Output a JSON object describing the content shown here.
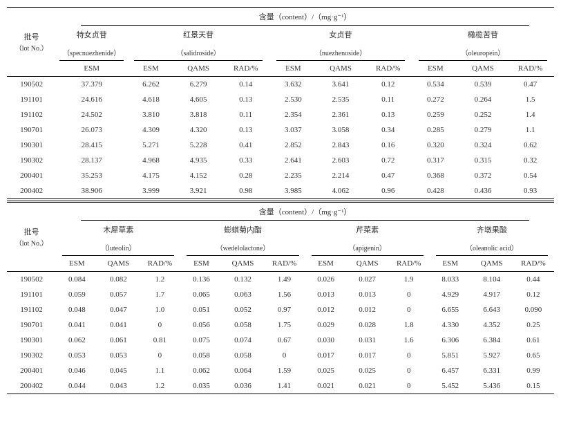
{
  "header_content": "含量（content）/（mg·g⁻¹）",
  "lot_label_cn": "批号",
  "lot_label_en": "（lot No.）",
  "compounds_top": [
    {
      "cn": "特女贞苷",
      "en": "（specnuezhenide）",
      "cols": [
        "ESM"
      ]
    },
    {
      "cn": "红景天苷",
      "en": "（salidroside）",
      "cols": [
        "ESM",
        "QAMS",
        "RAD/%"
      ]
    },
    {
      "cn": "女贞苷",
      "en": "（nuezhenoside）",
      "cols": [
        "ESM",
        "QAMS",
        "RAD/%"
      ]
    },
    {
      "cn": "橄榄苦苷",
      "en": "（oleuropein）",
      "cols": [
        "ESM",
        "QAMS",
        "RAD/%"
      ]
    }
  ],
  "compounds_bot": [
    {
      "cn": "木犀草素",
      "en": "（luteolin）",
      "cols": [
        "ESM",
        "QAMS",
        "RAD/%"
      ]
    },
    {
      "cn": "蟛蜞菊内酯",
      "en": "（wedelolactone）",
      "cols": [
        "ESM",
        "QAMS",
        "RAD/%"
      ]
    },
    {
      "cn": "芹菜素",
      "en": "（apigenin）",
      "cols": [
        "ESM",
        "QAMS",
        "RAD/%"
      ]
    },
    {
      "cn": "齐墩果酸",
      "en": "（oleanolic acid）",
      "cols": [
        "ESM",
        "QAMS",
        "RAD/%"
      ]
    }
  ],
  "lots": [
    "190502",
    "191101",
    "191102",
    "190701",
    "190301",
    "190302",
    "200401",
    "200402"
  ],
  "top_data": [
    [
      "37.379",
      "6.262",
      "6.279",
      "0.14",
      "3.632",
      "3.641",
      "0.12",
      "0.534",
      "0.539",
      "0.47"
    ],
    [
      "24.616",
      "4.618",
      "4.605",
      "0.13",
      "2.530",
      "2.535",
      "0.11",
      "0.272",
      "0.264",
      "1.5"
    ],
    [
      "24.502",
      "3.810",
      "3.818",
      "0.11",
      "2.354",
      "2.361",
      "0.13",
      "0.259",
      "0.252",
      "1.4"
    ],
    [
      "26.073",
      "4.309",
      "4.320",
      "0.13",
      "3.037",
      "3.058",
      "0.34",
      "0.285",
      "0.279",
      "1.1"
    ],
    [
      "28.415",
      "5.271",
      "5.228",
      "0.41",
      "2.852",
      "2.843",
      "0.16",
      "0.320",
      "0.324",
      "0.62"
    ],
    [
      "28.137",
      "4.968",
      "4.935",
      "0.33",
      "2.641",
      "2.603",
      "0.72",
      "0.317",
      "0.315",
      "0.32"
    ],
    [
      "35.253",
      "4.175",
      "4.152",
      "0.28",
      "2.235",
      "2.214",
      "0.47",
      "0.368",
      "0.372",
      "0.54"
    ],
    [
      "38.906",
      "3.999",
      "3.921",
      "0.98",
      "3.985",
      "4.062",
      "0.96",
      "0.428",
      "0.436",
      "0.93"
    ]
  ],
  "bot_data": [
    [
      "0.084",
      "0.082",
      "1.2",
      "0.136",
      "0.132",
      "1.49",
      "0.026",
      "0.027",
      "1.9",
      "8.033",
      "8.104",
      "0.44"
    ],
    [
      "0.059",
      "0.057",
      "1.7",
      "0.065",
      "0.063",
      "1.56",
      "0.013",
      "0.013",
      "0",
      "4.929",
      "4.917",
      "0.12"
    ],
    [
      "0.048",
      "0.047",
      "1.0",
      "0.051",
      "0.052",
      "0.97",
      "0.012",
      "0.012",
      "0",
      "6.655",
      "6.643",
      "0.090"
    ],
    [
      "0.041",
      "0.041",
      "0",
      "0.056",
      "0.058",
      "1.75",
      "0.029",
      "0.028",
      "1.8",
      "4.330",
      "4.352",
      "0.25"
    ],
    [
      "0.062",
      "0.061",
      "0.81",
      "0.075",
      "0.074",
      "0.67",
      "0.030",
      "0.031",
      "1.6",
      "6.306",
      "6.384",
      "0.61"
    ],
    [
      "0.053",
      "0.053",
      "0",
      "0.058",
      "0.058",
      "0",
      "0.017",
      "0.017",
      "0",
      "5.851",
      "5.927",
      "0.65"
    ],
    [
      "0.046",
      "0.045",
      "1.1",
      "0.062",
      "0.064",
      "1.59",
      "0.025",
      "0.025",
      "0",
      "6.457",
      "6.331",
      "0.99"
    ],
    [
      "0.044",
      "0.043",
      "1.2",
      "0.035",
      "0.036",
      "1.41",
      "0.021",
      "0.021",
      "0",
      "5.452",
      "5.436",
      "0.15"
    ]
  ]
}
